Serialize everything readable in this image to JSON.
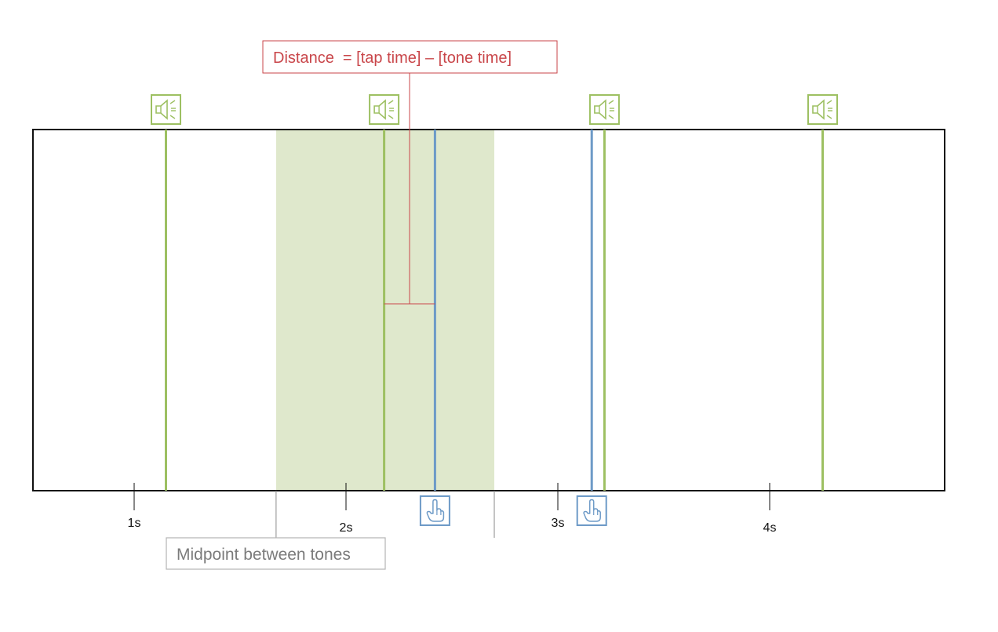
{
  "diagram": {
    "distance_label": "Distance  = [tap time] – [tone time]",
    "midpoint_label": "Midpoint between tones",
    "time_axis": {
      "ticks": [
        {
          "t": 1,
          "label": "1s"
        },
        {
          "t": 2,
          "label": "2s"
        },
        {
          "t": 3,
          "label": "3s"
        },
        {
          "t": 4,
          "label": "4s"
        }
      ]
    },
    "tones": [
      {
        "t": 1.15,
        "icon": "speaker-icon"
      },
      {
        "t": 2.18,
        "icon": "speaker-icon"
      },
      {
        "t": 3.22,
        "icon": "speaker-icon"
      },
      {
        "t": 4.25,
        "icon": "speaker-icon"
      }
    ],
    "taps": [
      {
        "t": 2.42,
        "icon": "tap-hand-icon"
      },
      {
        "t": 3.16,
        "icon": "tap-hand-icon"
      }
    ],
    "highlight_window": {
      "start": 1.67,
      "end": 2.7
    },
    "colors": {
      "tone": "#9dc062",
      "tap": "#6d9ac7",
      "highlight": "#dfe8cc",
      "distance": "#c9464a",
      "midpoint_box": "#b5b5b5",
      "frame": "#111111"
    }
  }
}
